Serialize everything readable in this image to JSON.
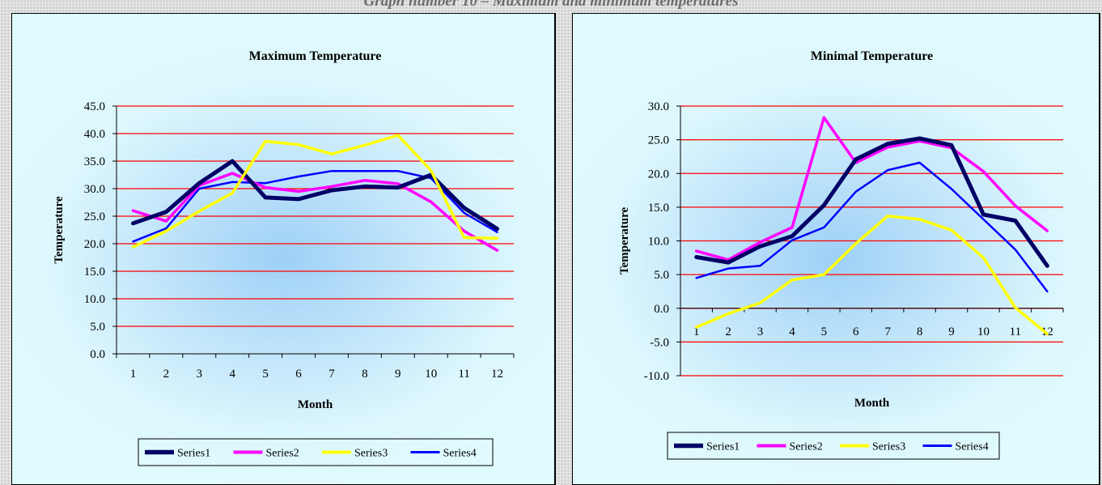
{
  "page": {
    "heading": "Graph number 10 – Maximum and minimum temperatures"
  },
  "colors": {
    "Series1": "#000066",
    "Series2": "#ff00ff",
    "Series3": "#ffff00",
    "Series4": "#0000ff",
    "gridline": "#ff0000"
  },
  "chart_data": [
    {
      "type": "line",
      "title": "Maximum Temperature",
      "xlabel": "Month",
      "ylabel": "Temperature",
      "ylim": [
        0,
        45
      ],
      "ytick_step": 5,
      "grid": true,
      "legend": "bottom",
      "x": [
        "1",
        "2",
        "3",
        "4",
        "5",
        "6",
        "7",
        "8",
        "9",
        "10",
        "11",
        "12"
      ],
      "ytick_labels": [
        "0.0",
        "5.0",
        "10.0",
        "15.0",
        "20.0",
        "25.0",
        "30.0",
        "35.0",
        "40.0",
        "45.0"
      ],
      "series": [
        {
          "name": "Series1",
          "values": [
            23.7,
            25.8,
            31.0,
            35.0,
            28.4,
            28.1,
            29.7,
            30.4,
            30.2,
            32.5,
            26.5,
            22.7
          ]
        },
        {
          "name": "Series2",
          "values": [
            26.0,
            24.1,
            30.6,
            32.8,
            30.2,
            29.5,
            30.4,
            31.5,
            30.9,
            27.6,
            22.3,
            18.8
          ]
        },
        {
          "name": "Series3",
          "values": [
            19.4,
            22.3,
            25.9,
            29.2,
            38.6,
            38.0,
            36.3,
            37.9,
            39.7,
            33.3,
            21.1,
            21.0
          ]
        },
        {
          "name": "Series4",
          "values": [
            20.4,
            22.8,
            30.0,
            31.2,
            31.0,
            32.2,
            33.2,
            33.2,
            33.2,
            31.9,
            25.6,
            22.1
          ]
        }
      ]
    },
    {
      "type": "line",
      "title": "Minimal Temperature",
      "xlabel": "Month",
      "ylabel": "Temperature",
      "ylim": [
        -10,
        30
      ],
      "ytick_step": 5,
      "grid": true,
      "legend": "bottom",
      "x": [
        "1",
        "2",
        "3",
        "4",
        "5",
        "6",
        "7",
        "8",
        "9",
        "10",
        "11",
        "12"
      ],
      "ytick_labels": [
        "-10.0",
        "-5.0",
        "0.0",
        "5.0",
        "10.0",
        "15.0",
        "20.0",
        "25.0",
        "30.0"
      ],
      "series": [
        {
          "name": "Series1",
          "values": [
            7.6,
            6.8,
            9.2,
            10.7,
            15.3,
            22.1,
            24.4,
            25.2,
            24.2,
            13.9,
            13.0,
            6.3
          ]
        },
        {
          "name": "Series2",
          "values": [
            8.5,
            7.2,
            9.8,
            12.0,
            28.3,
            21.6,
            23.9,
            24.8,
            23.8,
            20.3,
            15.2,
            11.5
          ]
        },
        {
          "name": "Series3",
          "values": [
            -2.8,
            -0.8,
            0.8,
            4.2,
            5.0,
            9.6,
            13.7,
            13.2,
            11.6,
            7.5,
            0.1,
            -3.8
          ]
        },
        {
          "name": "Series4",
          "values": [
            4.5,
            5.9,
            6.3,
            10.1,
            12.0,
            17.3,
            20.5,
            21.6,
            17.7,
            13.2,
            8.7,
            2.5
          ]
        }
      ]
    }
  ]
}
